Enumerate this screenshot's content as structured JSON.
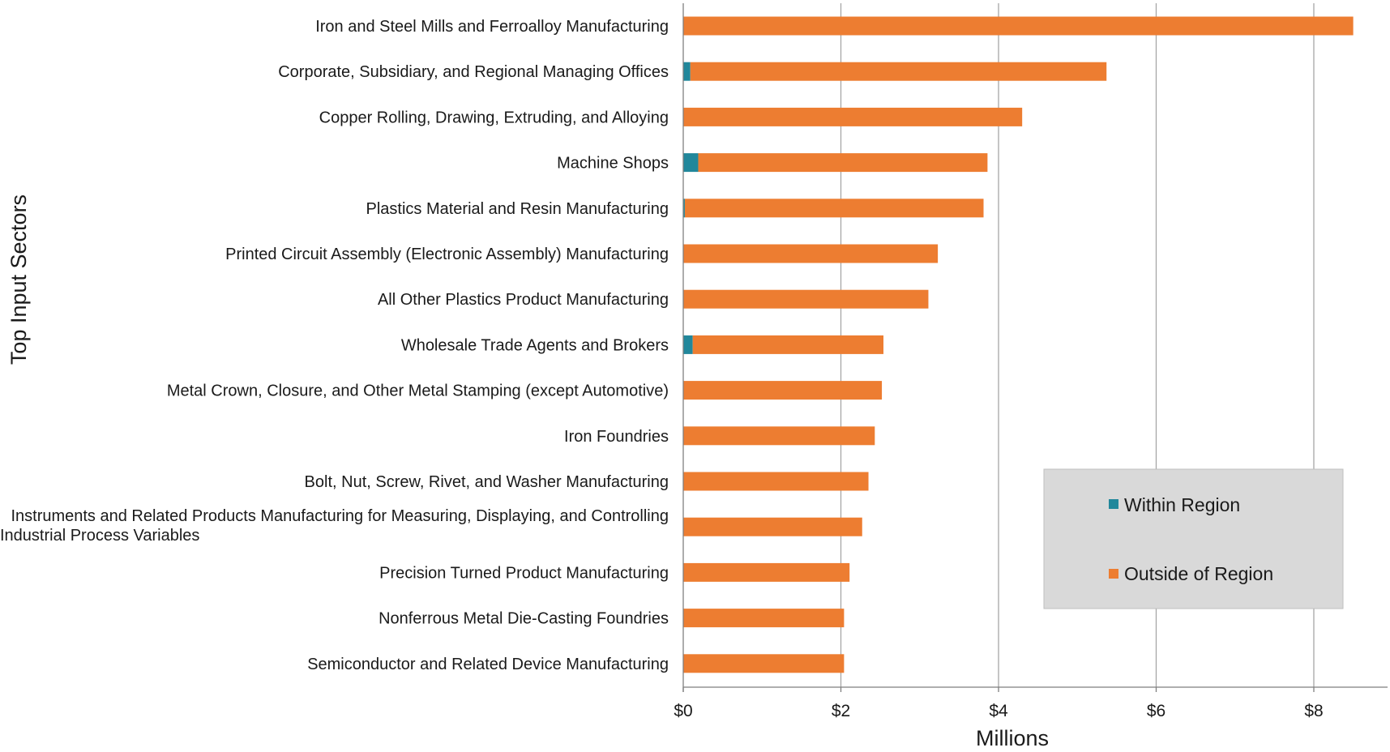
{
  "chart_data": {
    "type": "bar",
    "orientation": "horizontal",
    "stacked": true,
    "title": "",
    "xlabel": "Millions",
    "ylabel": "Top Input Sectors",
    "xlim": [
      0,
      9
    ],
    "xticks": [
      0,
      2,
      4,
      6,
      8
    ],
    "xtick_labels": [
      "$0",
      "$2",
      "$4",
      "$6",
      "$8"
    ],
    "grid": "vertical",
    "legend_position": "right",
    "categories": [
      "Iron and Steel Mills and Ferroalloy Manufacturing",
      "Corporate, Subsidiary, and Regional Managing Offices",
      "Copper Rolling, Drawing, Extruding, and Alloying",
      "Machine Shops",
      "Plastics Material and Resin Manufacturing",
      "Printed Circuit Assembly (Electronic Assembly) Manufacturing",
      "All Other Plastics Product Manufacturing",
      "Wholesale Trade Agents and Brokers",
      "Metal Crown, Closure, and Other Metal Stamping (except Automotive)",
      "Iron Foundries",
      "Bolt, Nut, Screw, Rivet, and Washer Manufacturing",
      "Instruments and Related Products Manufacturing for Measuring, Displaying, and Controlling Industrial Process Variables",
      "Precision Turned Product Manufacturing",
      "Nonferrous Metal Die-Casting Foundries",
      "Semiconductor and Related Device Manufacturing"
    ],
    "category_lines": [
      [
        "Iron and Steel Mills and Ferroalloy Manufacturing"
      ],
      [
        "Corporate, Subsidiary, and Regional Managing Offices"
      ],
      [
        "Copper Rolling, Drawing, Extruding, and Alloying"
      ],
      [
        "Machine Shops"
      ],
      [
        "Plastics Material and Resin Manufacturing"
      ],
      [
        "Printed Circuit Assembly (Electronic Assembly) Manufacturing"
      ],
      [
        "All Other Plastics Product Manufacturing"
      ],
      [
        "Wholesale Trade Agents and Brokers"
      ],
      [
        "Metal Crown, Closure, and Other Metal Stamping (except Automotive)"
      ],
      [
        "Iron Foundries"
      ],
      [
        "Bolt, Nut, Screw, Rivet, and Washer Manufacturing"
      ],
      [
        "Instruments and Related Products Manufacturing for Measuring, Displaying, and Controlling",
        "Industrial Process Variables"
      ],
      [
        "Precision Turned Product Manufacturing"
      ],
      [
        "Nonferrous Metal Die-Casting Foundries"
      ],
      [
        "Semiconductor and Related Device Manufacturing"
      ]
    ],
    "series": [
      {
        "name": "Within Region",
        "color": "#21879b",
        "values": [
          0.0,
          0.09,
          0.0,
          0.19,
          0.02,
          0.0,
          0.0,
          0.12,
          0.0,
          0.0,
          0.0,
          0.0,
          0.0,
          0.0,
          0.0
        ]
      },
      {
        "name": "Outside of Region",
        "color": "#ed7d31",
        "values": [
          8.5,
          5.28,
          4.3,
          3.67,
          3.79,
          3.23,
          3.11,
          2.42,
          2.52,
          2.43,
          2.35,
          2.27,
          2.11,
          2.04,
          2.04
        ]
      }
    ]
  }
}
